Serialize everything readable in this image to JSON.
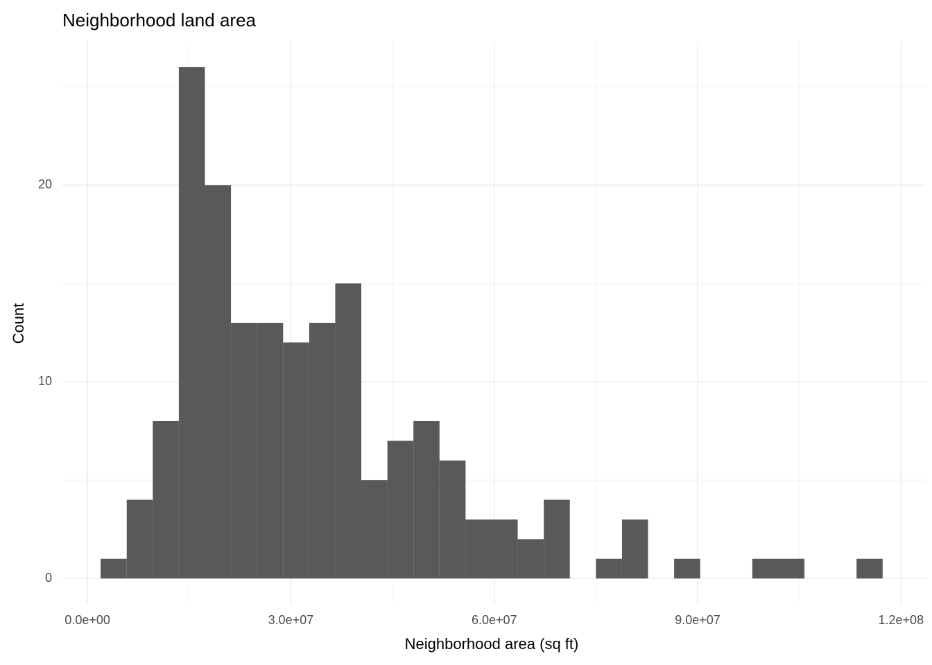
{
  "chart_data": {
    "type": "histogram",
    "title": "Neighborhood land area",
    "x_label": "Neighborhood area (sq ft)",
    "y_label": "Count",
    "bins": [
      1940000,
      5785000,
      9630000,
      13475000,
      17320000,
      21165000,
      25010000,
      28855000,
      32700000,
      36545000,
      40390000,
      44235000,
      48080000,
      51925000,
      55770000,
      59615000,
      63460000,
      67305000,
      71150000,
      74995000,
      78840000,
      82685000,
      86530000,
      90375000,
      94220000,
      98065000,
      101910000,
      105755000,
      109600000,
      113445000,
      117290000
    ],
    "values": [
      1,
      4,
      8,
      26,
      20,
      13,
      13,
      12,
      13,
      15,
      5,
      7,
      8,
      6,
      3,
      3,
      2,
      4,
      0,
      1,
      3,
      0,
      1,
      0,
      0,
      1,
      1,
      0,
      0,
      1
    ],
    "color": "#595959",
    "xlim": [
      -3700000,
      123650000
    ],
    "ylim": [
      -1.3,
      27.3
    ],
    "xticks": [
      {
        "value": 0,
        "label": "0.0e+00"
      },
      {
        "value": 30000000,
        "label": "3.0e+07"
      },
      {
        "value": 60000000,
        "label": "6.0e+07"
      },
      {
        "value": 90000000,
        "label": "9.0e+07"
      },
      {
        "value": 120000000,
        "label": "1.2e+08"
      }
    ],
    "yticks": [
      0,
      10,
      20
    ],
    "grid": true
  }
}
